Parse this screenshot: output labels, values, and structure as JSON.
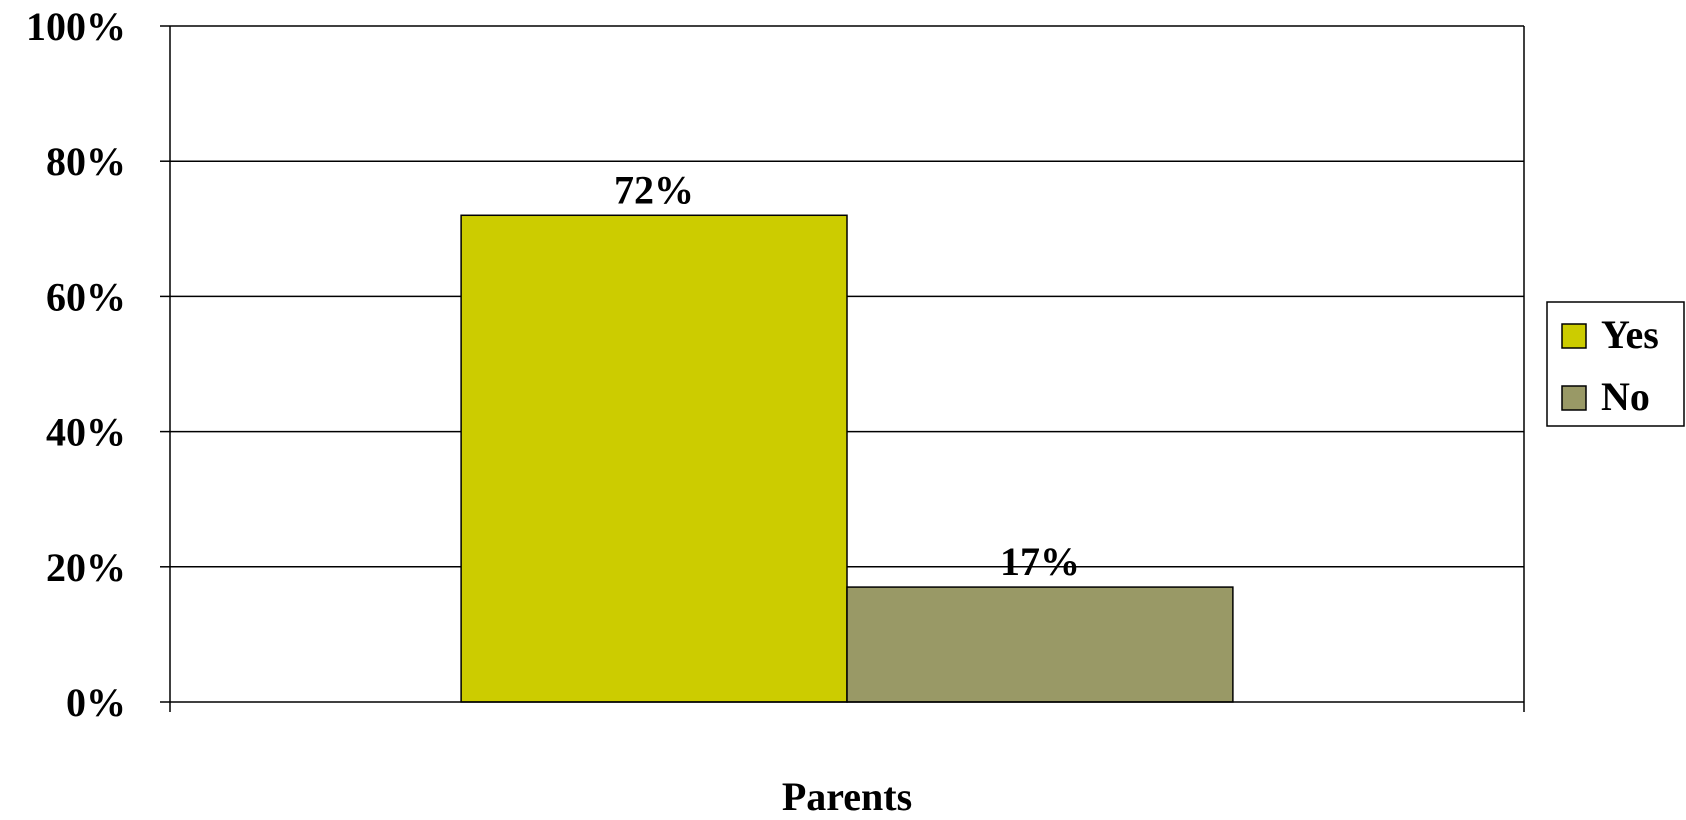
{
  "chart_data": {
    "type": "bar",
    "title": "",
    "xlabel": "",
    "ylabel": "",
    "categories": [
      "Parents"
    ],
    "series": [
      {
        "name": "Yes",
        "values": [
          72
        ],
        "color": "#cccc00",
        "data_labels": [
          "72%"
        ]
      },
      {
        "name": "No",
        "values": [
          17
        ],
        "color": "#999966",
        "data_labels": [
          "17%"
        ]
      }
    ],
    "ylim": [
      0,
      100
    ],
    "yticks": [
      0,
      20,
      40,
      60,
      80,
      100
    ],
    "ytick_labels": [
      "0%",
      "20%",
      "40%",
      "60%",
      "80%",
      "100%"
    ],
    "grid": true,
    "legend": "right"
  }
}
